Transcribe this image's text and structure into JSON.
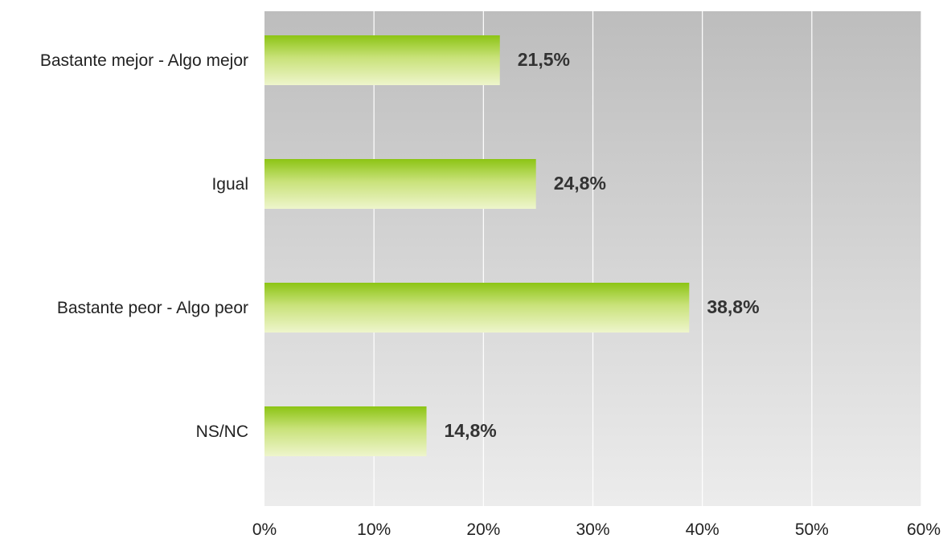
{
  "chart_data": {
    "type": "bar",
    "orientation": "horizontal",
    "categories": [
      "Bastante mejor - Algo mejor",
      "Igual",
      "Bastante peor - Algo peor",
      "NS/NC"
    ],
    "values": [
      21.5,
      24.8,
      38.8,
      14.8
    ],
    "value_labels": [
      "21,5%",
      "24,8%",
      "38,8%",
      "14,8%"
    ],
    "xlim": [
      0,
      60
    ],
    "x_ticks": [
      0,
      10,
      20,
      30,
      40,
      50,
      60
    ],
    "x_tick_labels": [
      "0%",
      "10%",
      "20%",
      "30%",
      "40%",
      "50%",
      "60%"
    ],
    "grid": true,
    "legend": "none",
    "colors": {
      "plot_bg_top": "#bdbdbd",
      "plot_bg_bottom": "#ececec",
      "bar_top": "#8cc414",
      "bar_bottom": "#eef5cc",
      "gridline": "#ffffff",
      "value_text": "#333333",
      "label_text": "#222222"
    }
  }
}
